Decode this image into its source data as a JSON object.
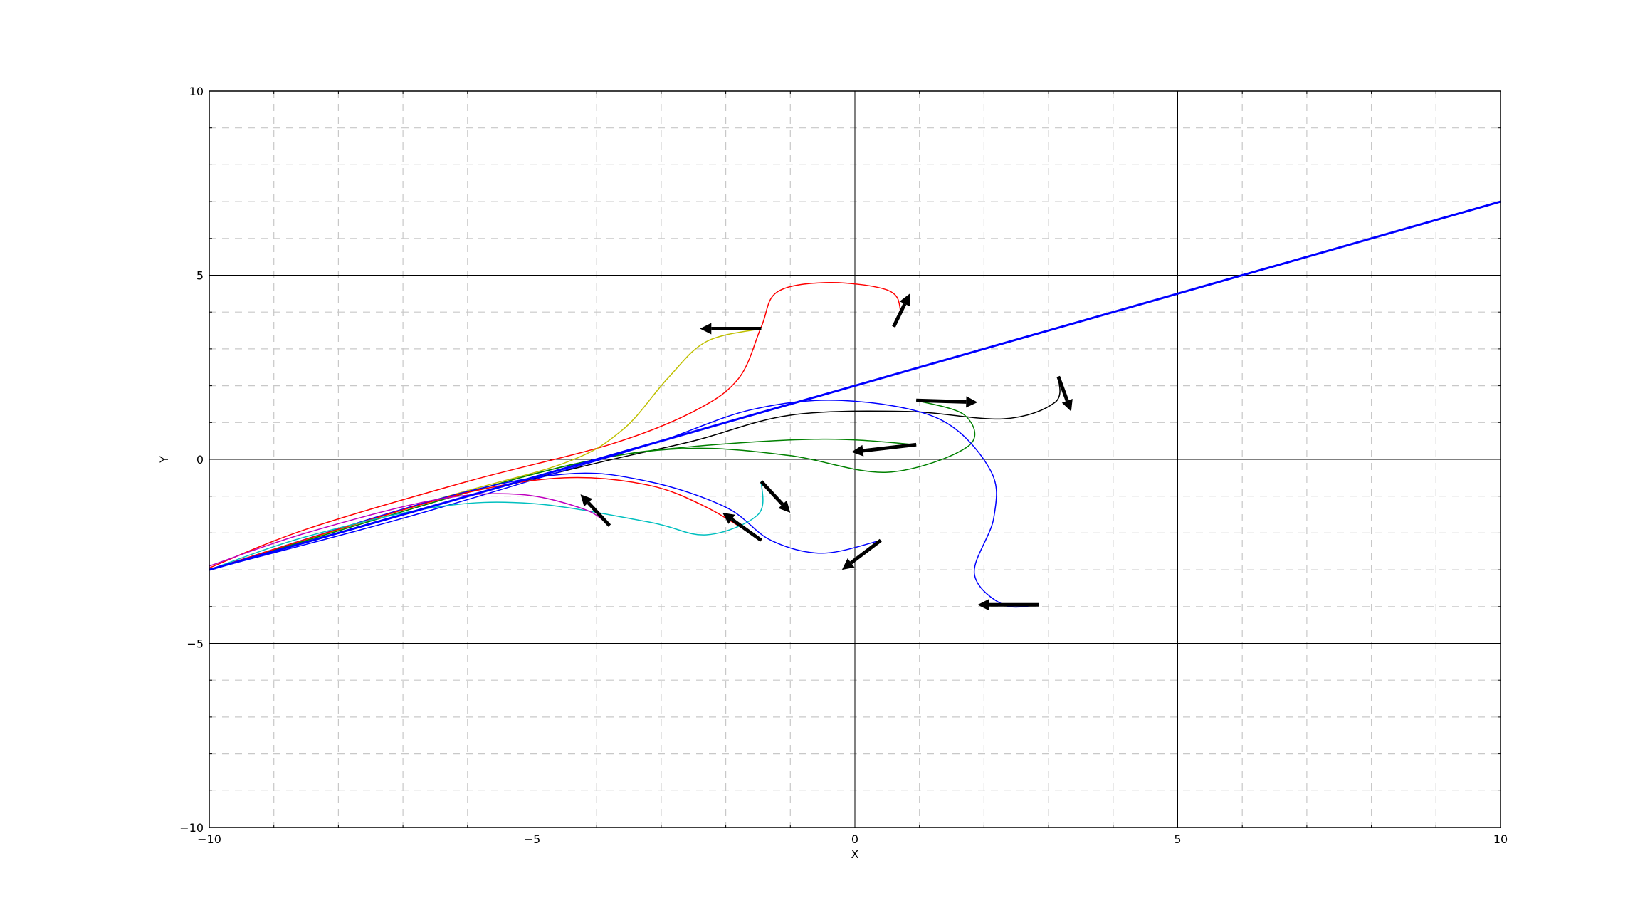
{
  "chart_data": {
    "type": "line",
    "title": "",
    "xlabel": "X",
    "ylabel": "Y",
    "xlim": [
      -10,
      10
    ],
    "ylim": [
      -10,
      10
    ],
    "x_major_ticks": [
      -10,
      -5,
      0,
      5,
      10
    ],
    "y_major_ticks": [
      -10,
      -5,
      0,
      5,
      10
    ],
    "x_tick_labels": [
      "−10",
      "−5",
      "0",
      "5",
      "10"
    ],
    "y_tick_labels": [
      "−10",
      "−5",
      "0",
      "5",
      "10"
    ],
    "minor_tick_step": 1,
    "grid": true,
    "legend": "none",
    "reference_line": {
      "color": "#0000ff",
      "points": [
        [
          -10,
          -3
        ],
        [
          10,
          7
        ]
      ]
    },
    "series": [
      {
        "color": "#ff0000",
        "points": [
          [
            0.6,
            3.6
          ],
          [
            0.7,
            4.1
          ],
          [
            0.5,
            4.6
          ],
          [
            -0.4,
            4.8
          ],
          [
            -1.2,
            4.55
          ],
          [
            -1.45,
            3.6
          ],
          [
            -1.8,
            2.2
          ],
          [
            -2.5,
            1.3
          ],
          [
            -3.8,
            0.4
          ],
          [
            -6,
            -0.6
          ],
          [
            -8.5,
            -1.9
          ],
          [
            -10,
            -2.95
          ]
        ]
      },
      {
        "color": "#bfbf00",
        "points": [
          [
            -1.45,
            3.55
          ],
          [
            -2.3,
            3.2
          ],
          [
            -2.9,
            2.2
          ],
          [
            -3.6,
            0.8
          ],
          [
            -4.5,
            -0.1
          ],
          [
            -6.5,
            -1.1
          ],
          [
            -10,
            -3
          ]
        ]
      },
      {
        "color": "#000000",
        "points": [
          [
            3.15,
            2.25
          ],
          [
            3.1,
            1.55
          ],
          [
            2.3,
            1.1
          ],
          [
            0.8,
            1.3
          ],
          [
            -1,
            1.2
          ],
          [
            -2.5,
            0.5
          ],
          [
            -4,
            -0.1
          ],
          [
            -6,
            -1
          ],
          [
            -10,
            -3
          ]
        ]
      },
      {
        "color": "#008000",
        "points": [
          [
            0.95,
            1.6
          ],
          [
            1.7,
            1.2
          ],
          [
            1.75,
            0.35
          ],
          [
            0.5,
            -0.35
          ],
          [
            -1,
            0.1
          ],
          [
            -2.5,
            0.3
          ],
          [
            -4,
            0
          ],
          [
            -6,
            -0.9
          ],
          [
            -10,
            -3
          ]
        ]
      },
      {
        "color": "#008000",
        "points": [
          [
            0.95,
            0.4
          ],
          [
            -0.5,
            0.55
          ],
          [
            -2.5,
            0.35
          ],
          [
            -4,
            0
          ],
          [
            -6,
            -0.9
          ],
          [
            -10,
            -3
          ]
        ]
      },
      {
        "color": "#0000ff",
        "points": [
          [
            2.85,
            -3.95
          ],
          [
            2.3,
            -3.95
          ],
          [
            1.85,
            -3.1
          ],
          [
            2.15,
            -1.6
          ],
          [
            2.1,
            -0.3
          ],
          [
            1.3,
            1.1
          ],
          [
            -0.2,
            1.6
          ],
          [
            -1.6,
            1.35
          ],
          [
            -3,
            0.5
          ],
          [
            -4.5,
            -0.3
          ],
          [
            -7,
            -1.6
          ],
          [
            -10,
            -3
          ]
        ]
      },
      {
        "color": "#0000ff",
        "points": [
          [
            0.4,
            -2.2
          ],
          [
            -0.5,
            -2.55
          ],
          [
            -1.3,
            -2.2
          ],
          [
            -2,
            -1.3
          ],
          [
            -3.2,
            -0.6
          ],
          [
            -4.5,
            -0.4
          ],
          [
            -6.5,
            -1.1
          ],
          [
            -10,
            -3
          ]
        ]
      },
      {
        "color": "#ff0000",
        "points": [
          [
            -1.45,
            -2.2
          ],
          [
            -2.3,
            -1.3
          ],
          [
            -3.2,
            -0.7
          ],
          [
            -4.5,
            -0.5
          ],
          [
            -6,
            -0.9
          ],
          [
            -8,
            -1.9
          ],
          [
            -10,
            -3
          ]
        ]
      },
      {
        "color": "#00bfbf",
        "points": [
          [
            -1.45,
            -0.6
          ],
          [
            -1.5,
            -1.5
          ],
          [
            -2.3,
            -2.05
          ],
          [
            -3.2,
            -1.7
          ],
          [
            -5,
            -1.2
          ],
          [
            -6.5,
            -1.3
          ],
          [
            -8.5,
            -2.1
          ],
          [
            -10,
            -3
          ]
        ]
      },
      {
        "color": "#bf00bf",
        "points": [
          [
            -3.8,
            -1.8
          ],
          [
            -4.2,
            -1.35
          ],
          [
            -5.2,
            -0.95
          ],
          [
            -6.5,
            -1.1
          ],
          [
            -8.5,
            -2
          ],
          [
            -10,
            -2.9
          ]
        ]
      }
    ],
    "arrows": [
      {
        "color": "#000000",
        "from": [
          0.6,
          3.6
        ],
        "to": [
          0.85,
          4.5
        ]
      },
      {
        "color": "#000000",
        "from": [
          -1.45,
          3.55
        ],
        "to": [
          -2.4,
          3.55
        ]
      },
      {
        "color": "#000000",
        "from": [
          3.15,
          2.25
        ],
        "to": [
          3.35,
          1.3
        ]
      },
      {
        "color": "#000000",
        "from": [
          0.95,
          1.6
        ],
        "to": [
          1.9,
          1.55
        ]
      },
      {
        "color": "#000000",
        "from": [
          0.95,
          0.4
        ],
        "to": [
          -0.05,
          0.2
        ]
      },
      {
        "color": "#000000",
        "from": [
          2.85,
          -3.95
        ],
        "to": [
          1.9,
          -3.95
        ]
      },
      {
        "color": "#000000",
        "from": [
          0.4,
          -2.2
        ],
        "to": [
          -0.2,
          -3
        ]
      },
      {
        "color": "#000000",
        "from": [
          -1.45,
          -2.2
        ],
        "to": [
          -2.05,
          -1.45
        ]
      },
      {
        "color": "#000000",
        "from": [
          -1.45,
          -0.6
        ],
        "to": [
          -1,
          -1.45
        ]
      },
      {
        "color": "#000000",
        "from": [
          -3.8,
          -1.8
        ],
        "to": [
          -4.25,
          -0.95
        ]
      }
    ]
  }
}
